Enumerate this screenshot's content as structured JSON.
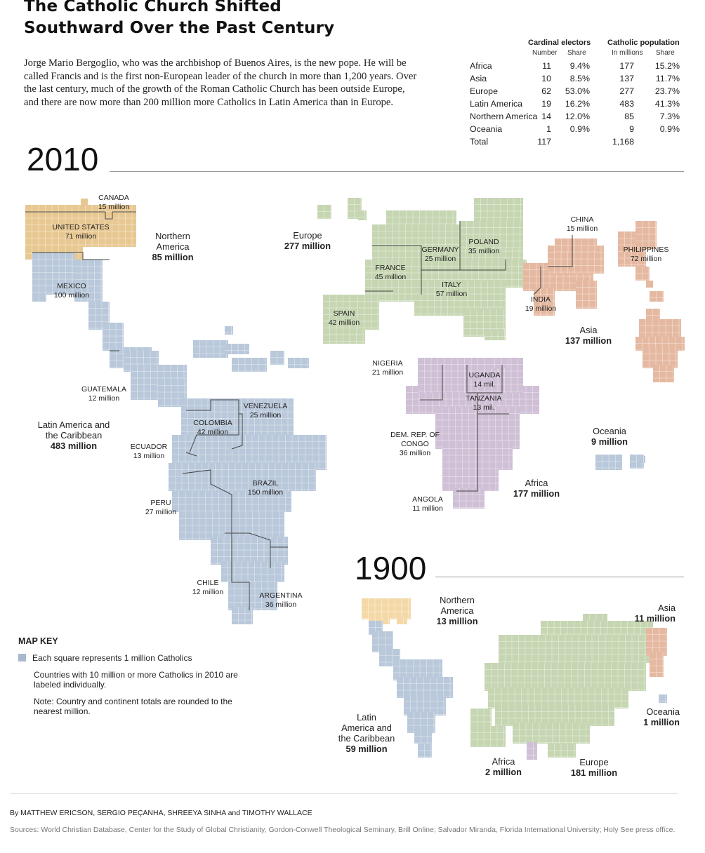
{
  "headline": [
    "The Catholic Church Shifted",
    "Southward Over the Past Century"
  ],
  "intro": "Jorge Mario Bergoglio, who was the archbishop of Buenos Aires, is the new pope. He will be called Francis and is the first non-European leader of the church in more than 1,200 years. Over the last century, much of the growth of the Roman Catholic Church has been outside Europe, and there are now more than 200 million more Catholics in Latin America than in Europe.",
  "table": {
    "group_cardinals": "Cardinal electors",
    "group_population": "Catholic population",
    "sub_number": "Number",
    "sub_share": "Share",
    "sub_millions": "In millions",
    "sub_share2": "Share",
    "rows": [
      {
        "region": "Africa",
        "electors": "11",
        "electors_share": "9.4%",
        "pop": "177",
        "pop_share": "15.2%"
      },
      {
        "region": "Asia",
        "electors": "10",
        "electors_share": "8.5%",
        "pop": "137",
        "pop_share": "11.7%"
      },
      {
        "region": "Europe",
        "electors": "62",
        "electors_share": "53.0%",
        "pop": "277",
        "pop_share": "23.7%"
      },
      {
        "region": "Latin America",
        "electors": "19",
        "electors_share": "16.2%",
        "pop": "483",
        "pop_share": "41.3%"
      },
      {
        "region": "Northern America",
        "electors": "14",
        "electors_share": "12.0%",
        "pop": "85",
        "pop_share": "7.3%"
      },
      {
        "region": "Oceania",
        "electors": "1",
        "electors_share": "0.9%",
        "pop": "9",
        "pop_share": "0.9%"
      },
      {
        "region": "Total",
        "electors": "117",
        "electors_share": "",
        "pop": "1,168",
        "pop_share": ""
      }
    ]
  },
  "year_2010": "2010",
  "year_1900": "1900",
  "colors": {
    "north_america": "#f4d9a8",
    "us_canada_2010": "#e8c892",
    "latin_america": "#b9c8da",
    "europe": "#c6d6b2",
    "asia": "#e5b9a1",
    "africa": "#cfc0d6",
    "oceania": "#b9c8da"
  },
  "countries_2010": [
    {
      "name": "CANADA",
      "value": "15 million"
    },
    {
      "name": "UNITED STATES",
      "value": "71 million"
    },
    {
      "name": "MEXICO",
      "value": "100 million"
    },
    {
      "name": "GUATEMALA",
      "value": "12 million"
    },
    {
      "name": "COLOMBIA",
      "value": "42 million"
    },
    {
      "name": "VENEZUELA",
      "value": "25 million"
    },
    {
      "name": "ECUADOR",
      "value": "13 million"
    },
    {
      "name": "BRAZIL",
      "value": "150 million"
    },
    {
      "name": "PERU",
      "value": "27 million"
    },
    {
      "name": "CHILE",
      "value": "12 million"
    },
    {
      "name": "ARGENTINA",
      "value": "36 million"
    },
    {
      "name": "FRANCE",
      "value": "45 million"
    },
    {
      "name": "GERMANY",
      "value": "25 million"
    },
    {
      "name": "POLAND",
      "value": "35 million"
    },
    {
      "name": "ITALY",
      "value": "57 million"
    },
    {
      "name": "SPAIN",
      "value": "42 million"
    },
    {
      "name": "CHINA",
      "value": "15 million"
    },
    {
      "name": "PHILIPPINES",
      "value": "72 million"
    },
    {
      "name": "INDIA",
      "value": "19 million"
    },
    {
      "name": "NIGERIA",
      "value": "21 million"
    },
    {
      "name": "UGANDA",
      "value": "14 mil."
    },
    {
      "name": "TANZANIA",
      "value": "13 mil."
    },
    {
      "name": "DEM. REP. OF CONGO",
      "value": "36 million"
    },
    {
      "name": "ANGOLA",
      "value": "11 million"
    }
  ],
  "regions_2010": [
    {
      "name": "Northern\nAmerica",
      "value": "85 million"
    },
    {
      "name": "Europe",
      "value": "277 million"
    },
    {
      "name": "Asia",
      "value": "137 million"
    },
    {
      "name": "Latin America and\nthe Caribbean",
      "value": "483 million"
    },
    {
      "name": "Africa",
      "value": "177 million"
    },
    {
      "name": "Oceania",
      "value": "9 million"
    }
  ],
  "regions_1900": [
    {
      "name": "Northern\nAmerica",
      "value": "13 million"
    },
    {
      "name": "Asia",
      "value": "11 million"
    },
    {
      "name": "Oceania",
      "value": "1 million"
    },
    {
      "name": "Latin\nAmerica and\nthe Caribbean",
      "value": "59 million"
    },
    {
      "name": "Africa",
      "value": "2 million"
    },
    {
      "name": "Europe",
      "value": "181 million"
    }
  ],
  "key": {
    "title": "MAP KEY",
    "square": "Each square represents 1 million Catholics",
    "labeled": "Countries with 10 million or more Catholics in 2010 are labeled individually.",
    "note": "Note: Country and continent totals are rounded to the nearest million."
  },
  "credits": "By MATTHEW ERICSON, SERGIO PEÇANHA, SHREEYA SINHA and TIMOTHY WALLACE",
  "sources": "Sources: World Christian Database, Center for the Study of Global Christianity, Gordon-Conwell Theological Seminary, Brill Online; Salvador Miranda, Florida International University; Holy See press office."
}
